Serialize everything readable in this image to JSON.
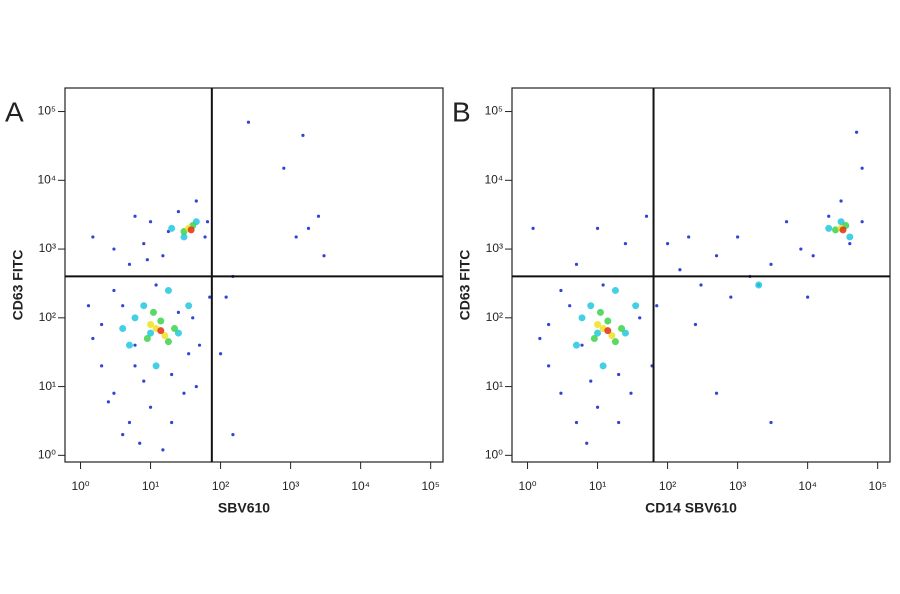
{
  "chart_data": [
    {
      "type": "scatter",
      "panel_label": "A",
      "xlabel": "SBV610",
      "ylabel": "CD63 FITC",
      "log_x": true,
      "log_y": true,
      "xlim": [
        0.6,
        150000
      ],
      "ylim": [
        0.8,
        220000
      ],
      "xticks": [
        {
          "value": 1,
          "label": "10⁰"
        },
        {
          "value": 10,
          "label": "10¹"
        },
        {
          "value": 100,
          "label": "10²"
        },
        {
          "value": 1000,
          "label": "10³"
        },
        {
          "value": 10000,
          "label": "10⁴"
        },
        {
          "value": 100000,
          "label": "10⁵"
        }
      ],
      "yticks": [
        {
          "value": 1,
          "label": "10⁰"
        },
        {
          "value": 10,
          "label": "10¹"
        },
        {
          "value": 100,
          "label": "10²"
        },
        {
          "value": 1000,
          "label": "10³"
        },
        {
          "value": 10000,
          "label": "10⁴"
        },
        {
          "value": 100000,
          "label": "10⁵"
        }
      ],
      "gates": {
        "x": 75,
        "y": 400
      },
      "series": [
        {
          "color": "#1f2fd0",
          "x": [
            2,
            3,
            4,
            5,
            6,
            8,
            10,
            12,
            20,
            30,
            40,
            2,
            3,
            5,
            8,
            10,
            15,
            25,
            60,
            50,
            70,
            1.5,
            4,
            7,
            20,
            35,
            1.3,
            9,
            18,
            45,
            65,
            1.5,
            3,
            6,
            100,
            150,
            250,
            1500,
            800,
            2500,
            1800,
            1200,
            3000,
            150,
            120,
            6,
            2.5,
            15,
            25,
            45
          ],
          "values": [
            20,
            8,
            150,
            3,
            40,
            12,
            5,
            300,
            15,
            8,
            100,
            80,
            250,
            600,
            1200,
            2500,
            800,
            3500,
            1500,
            40,
            200,
            50,
            2,
            1.5,
            3,
            30,
            150,
            700,
            1800,
            5000,
            2500,
            1500,
            1000,
            3000,
            30,
            2,
            70000,
            45000,
            15000,
            3000,
            2000,
            1500,
            800,
            400,
            200,
            20,
            6,
            1.2,
            120,
            10
          ]
        },
        {
          "color": "#22c8e0",
          "x": [
            5,
            8,
            12,
            18,
            25,
            6,
            30,
            45,
            20,
            10,
            35,
            4
          ],
          "values": [
            40,
            150,
            20,
            250,
            60,
            100,
            1500,
            2500,
            2000,
            60,
            150,
            70
          ]
        },
        {
          "color": "#3cd24a",
          "x": [
            9,
            14,
            18,
            11,
            30,
            40,
            22
          ],
          "values": [
            50,
            90,
            45,
            120,
            1800,
            2200,
            70
          ]
        },
        {
          "color": "#f0e020",
          "x": [
            12,
            16,
            35,
            10
          ],
          "values": [
            70,
            55,
            2000,
            80
          ]
        },
        {
          "color": "#e03010",
          "x": [
            14,
            38
          ],
          "values": [
            65,
            1900
          ]
        }
      ]
    },
    {
      "type": "scatter",
      "panel_label": "B",
      "xlabel": "CD14 SBV610",
      "ylabel": "CD63 FITC",
      "log_x": true,
      "log_y": true,
      "xlim": [
        0.6,
        150000
      ],
      "ylim": [
        0.8,
        220000
      ],
      "xticks": [
        {
          "value": 1,
          "label": "10⁰"
        },
        {
          "value": 10,
          "label": "10¹"
        },
        {
          "value": 100,
          "label": "10²"
        },
        {
          "value": 1000,
          "label": "10³"
        },
        {
          "value": 10000,
          "label": "10⁴"
        },
        {
          "value": 100000,
          "label": "10⁵"
        }
      ],
      "yticks": [
        {
          "value": 1,
          "label": "10⁰"
        },
        {
          "value": 10,
          "label": "10¹"
        },
        {
          "value": 100,
          "label": "10²"
        },
        {
          "value": 1000,
          "label": "10³"
        },
        {
          "value": 10000,
          "label": "10⁴"
        },
        {
          "value": 100000,
          "label": "10⁵"
        }
      ],
      "gates": {
        "x": 63,
        "y": 400
      },
      "series": [
        {
          "color": "#1f2fd0",
          "x": [
            2,
            3,
            4,
            5,
            6,
            8,
            10,
            12,
            20,
            30,
            40,
            2,
            3,
            5,
            10,
            25,
            50,
            1.5,
            7,
            20,
            1.2,
            60,
            70,
            150,
            200,
            300,
            500,
            800,
            1000,
            2000,
            3000,
            5000,
            8000,
            10000,
            20000,
            40000,
            60000,
            50000,
            60000,
            30000,
            3000,
            500,
            100,
            250,
            1500,
            12000
          ],
          "values": [
            20,
            8,
            150,
            3,
            40,
            12,
            5,
            300,
            15,
            8,
            100,
            80,
            250,
            600,
            2000,
            1200,
            3000,
            50,
            1.5,
            3,
            2000,
            20,
            150,
            500,
            1500,
            300,
            800,
            200,
            1500,
            300,
            600,
            2500,
            1000,
            200,
            3000,
            1200,
            2500,
            50000,
            15000,
            5000,
            3,
            8,
            1200,
            80,
            400,
            800
          ]
        },
        {
          "color": "#22c8e0",
          "x": [
            5,
            8,
            12,
            18,
            25,
            6,
            10,
            35,
            20000,
            40000,
            30000,
            2000
          ],
          "values": [
            40,
            150,
            20,
            250,
            60,
            100,
            60,
            150,
            2000,
            1500,
            2500,
            300
          ]
        },
        {
          "color": "#3cd24a",
          "x": [
            9,
            14,
            18,
            11,
            25000,
            35000,
            22
          ],
          "values": [
            50,
            90,
            45,
            120,
            1900,
            2200,
            70
          ]
        },
        {
          "color": "#f0e020",
          "x": [
            12,
            16,
            30000,
            10
          ],
          "values": [
            70,
            55,
            2000,
            80
          ]
        },
        {
          "color": "#e03010",
          "x": [
            14,
            32000
          ],
          "values": [
            65,
            1900
          ]
        }
      ]
    }
  ]
}
